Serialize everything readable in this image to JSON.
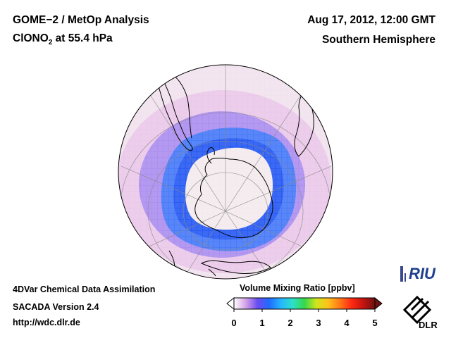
{
  "header": {
    "title_line1": "GOME−2 / MetOp Analysis",
    "species_main": "ClONO",
    "species_sub": "2",
    "species_rest": " at 55.4 hPa",
    "datetime": "Aug 17, 2012, 12:00 GMT",
    "region": "Southern Hemisphere"
  },
  "footer": {
    "line1": "4DVar Chemical Data Assimilation",
    "line2": "SACADA Version 2.4",
    "line3": "http://wdc.dlr.de"
  },
  "colorbar": {
    "title": "Volume Mixing Ratio [ppbv]",
    "ticks": [
      "0",
      "1",
      "2",
      "3",
      "4",
      "5"
    ],
    "range": [
      0,
      5
    ],
    "stops": [
      "#ffffff",
      "#d5a2e6",
      "#6a4cf0",
      "#1f6cff",
      "#27b6ff",
      "#2de0c8",
      "#35d84a",
      "#cfe51c",
      "#ffc21a",
      "#ff7a18",
      "#ff2a14",
      "#c4140f",
      "#6e1212"
    ]
  },
  "logos": {
    "riu": "RIU",
    "dlr": "DLR"
  },
  "map": {
    "projection": "orthographic, south polar",
    "colors": {
      "polar_low": "#f3eaee",
      "collar_deep": "#2a5cf2",
      "collar_mid": "#4a7cf7",
      "outer_purple": "#a78af0",
      "outer_pink": "#e9c4e8",
      "background_pale": "#f1e3ee",
      "coast": "#000000",
      "grid": "#8a8a8a"
    }
  }
}
